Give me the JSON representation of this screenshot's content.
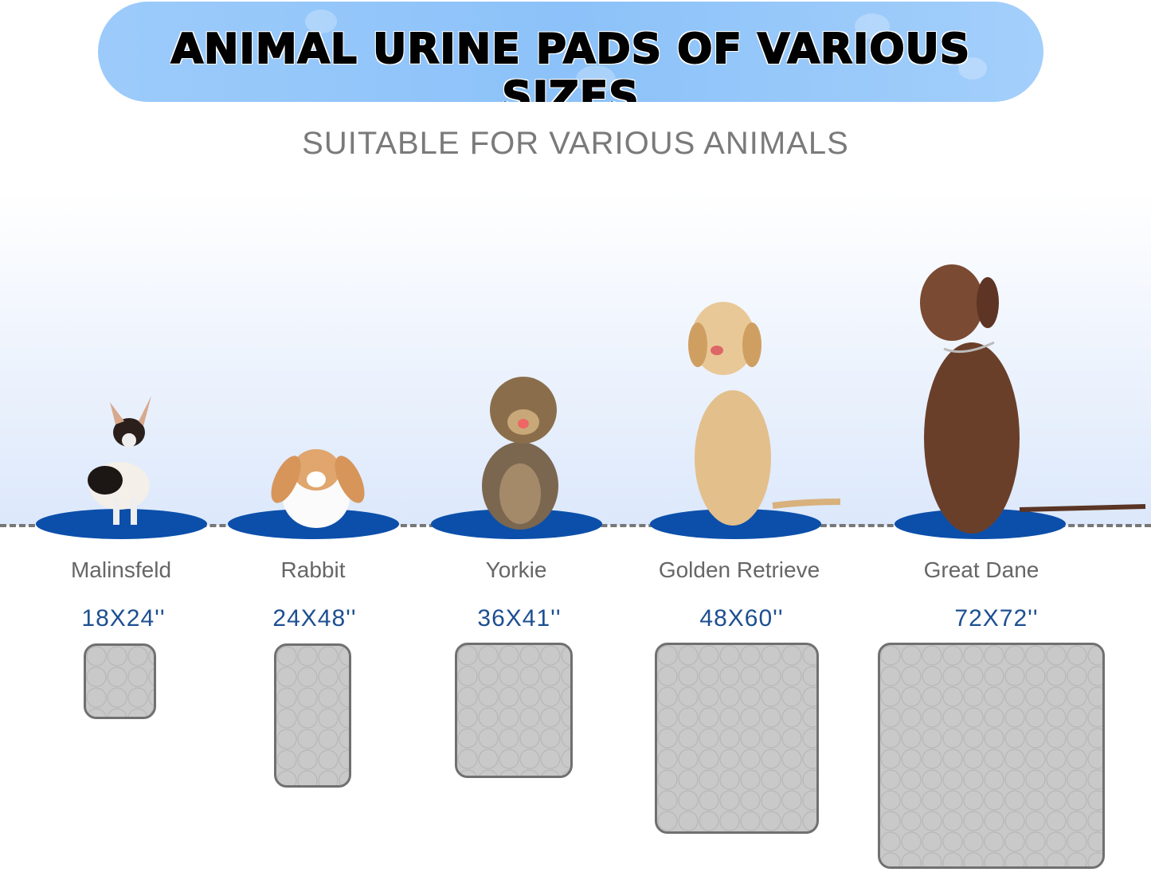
{
  "header": {
    "title": "ANIMAL URINE PADS OF VARIOUS SIZES",
    "subtitle": "SUITABLE FOR VARIOUS ANIMALS"
  },
  "colors": {
    "banner": "#8cc2f9",
    "mat": "#0c4faa",
    "size_text": "#1d4f91",
    "pad": "#c9c9c9"
  },
  "animals": [
    {
      "name": "Malinsfeld",
      "size": "18X24''"
    },
    {
      "name": "Rabbit",
      "size": "24X48''"
    },
    {
      "name": "Yorkie",
      "size": "36X41''"
    },
    {
      "name": "Golden Retrieve",
      "size": "48X60''"
    },
    {
      "name": "Great Dane",
      "size": "72X72''"
    }
  ]
}
